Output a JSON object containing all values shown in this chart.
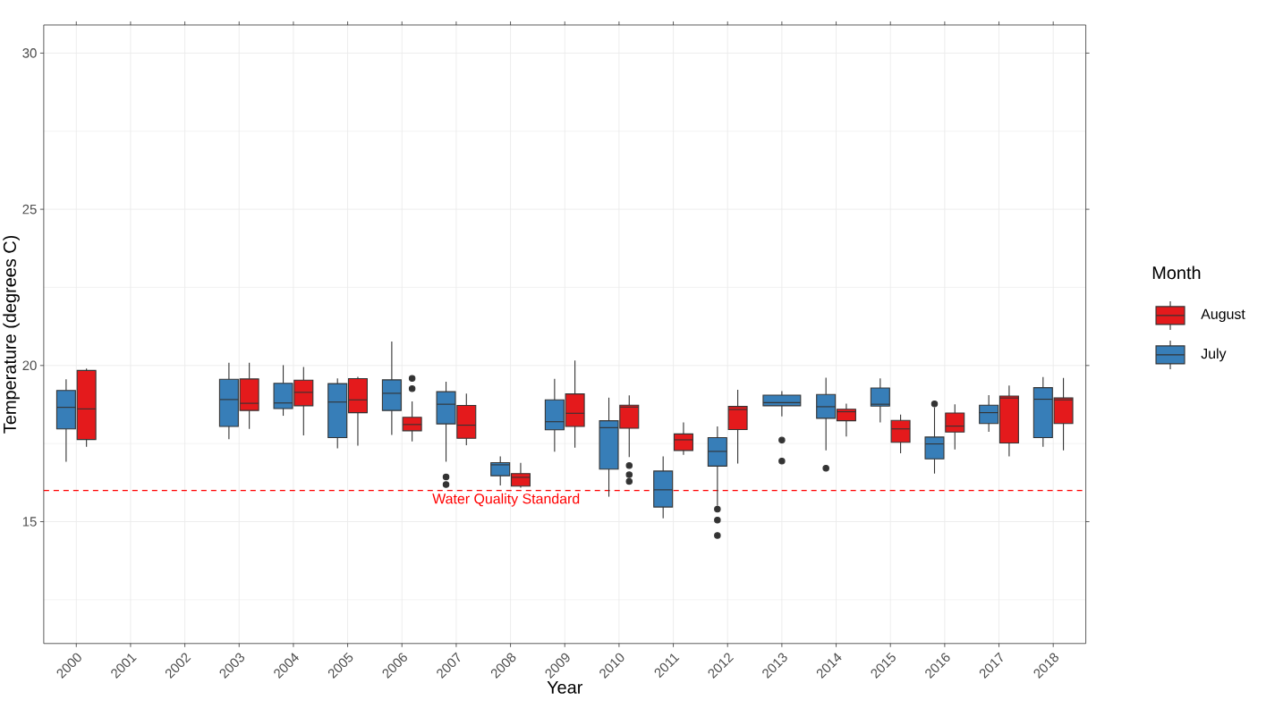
{
  "chart_data": {
    "type": "box",
    "xlabel": "Year",
    "ylabel": "Temperature (degrees C)",
    "legend_title": "Month",
    "legend": "right",
    "grid": true,
    "categories": [
      "2000",
      "2001",
      "2002",
      "2003",
      "2004",
      "2005",
      "2006",
      "2007",
      "2008",
      "2009",
      "2010",
      "2011",
      "2012",
      "2013",
      "2014",
      "2015",
      "2016",
      "2017",
      "2018"
    ],
    "ylim": [
      11.1,
      30.9
    ],
    "yticks": [
      15,
      20,
      25,
      30
    ],
    "ref_lines": [
      {
        "axis": "y",
        "value": 16,
        "label": "Water Quality Standard",
        "color": "#ff0000",
        "line_style": "dashed"
      }
    ],
    "series": [
      {
        "name": "August",
        "color": "#e41a1c",
        "boxes": [
          {
            "low": 17.4,
            "q1": 17.63,
            "median": 18.61,
            "q3": 19.84,
            "high": 19.9
          },
          null,
          null,
          {
            "low": 17.97,
            "q1": 18.56,
            "median": 18.79,
            "q3": 19.57,
            "high": 20.09
          },
          {
            "low": 17.76,
            "q1": 18.71,
            "median": 19.14,
            "q3": 19.53,
            "high": 19.95
          },
          {
            "low": 17.43,
            "q1": 18.49,
            "median": 18.9,
            "q3": 19.58,
            "high": 19.64
          },
          {
            "low": 17.57,
            "q1": 17.91,
            "median": 18.11,
            "q3": 18.34,
            "high": 18.85,
            "outliers": [
              19.26,
              19.59
            ]
          },
          {
            "low": 17.45,
            "q1": 17.67,
            "median": 18.09,
            "q3": 18.72,
            "high": 19.1
          },
          {
            "low": 16.09,
            "q1": 16.14,
            "median": 16.42,
            "q3": 16.54,
            "high": 16.88
          },
          {
            "low": 17.37,
            "q1": 18.05,
            "median": 18.47,
            "q3": 19.09,
            "high": 20.16
          },
          {
            "low": 17.07,
            "q1": 17.99,
            "median": 18.67,
            "q3": 18.73,
            "high": 19.04,
            "outliers": [
              16.8,
              16.5,
              16.29
            ]
          },
          {
            "low": 17.14,
            "q1": 17.28,
            "median": 17.62,
            "q3": 17.81,
            "high": 18.18
          },
          {
            "low": 16.86,
            "q1": 17.95,
            "median": 18.59,
            "q3": 18.69,
            "high": 19.22
          },
          null,
          {
            "low": 17.73,
            "q1": 18.23,
            "median": 18.52,
            "q3": 18.6,
            "high": 18.78
          },
          {
            "low": 17.19,
            "q1": 17.54,
            "median": 17.97,
            "q3": 18.24,
            "high": 18.43
          },
          {
            "low": 17.31,
            "q1": 17.87,
            "median": 18.06,
            "q3": 18.48,
            "high": 18.76
          },
          {
            "low": 17.09,
            "q1": 17.52,
            "median": 18.96,
            "q3": 19.02,
            "high": 19.36
          },
          {
            "low": 17.28,
            "q1": 18.14,
            "median": 18.9,
            "q3": 18.96,
            "high": 19.6
          }
        ]
      },
      {
        "name": "July",
        "color": "#377eb8",
        "boxes": [
          {
            "low": 16.92,
            "q1": 17.97,
            "median": 18.66,
            "q3": 19.2,
            "high": 19.56
          },
          null,
          null,
          {
            "low": 17.64,
            "q1": 18.05,
            "median": 18.91,
            "q3": 19.56,
            "high": 20.09
          },
          {
            "low": 18.39,
            "q1": 18.62,
            "median": 18.8,
            "q3": 19.43,
            "high": 20.01
          },
          {
            "low": 17.35,
            "q1": 17.69,
            "median": 18.83,
            "q3": 19.42,
            "high": 19.59
          },
          {
            "low": 17.78,
            "q1": 18.56,
            "median": 19.11,
            "q3": 19.54,
            "high": 20.77
          },
          {
            "low": 16.92,
            "q1": 18.13,
            "median": 18.76,
            "q3": 19.16,
            "high": 19.48,
            "outliers": [
              16.43,
              16.19
            ]
          },
          {
            "low": 16.16,
            "q1": 16.47,
            "median": 16.82,
            "q3": 16.89,
            "high": 17.09
          },
          {
            "low": 17.24,
            "q1": 17.94,
            "median": 18.2,
            "q3": 18.9,
            "high": 19.57
          },
          {
            "low": 15.8,
            "q1": 16.68,
            "median": 18.01,
            "q3": 18.23,
            "high": 18.97
          },
          {
            "low": 15.11,
            "q1": 15.47,
            "median": 16.02,
            "q3": 16.62,
            "high": 17.09
          },
          {
            "low": 15.51,
            "q1": 16.78,
            "median": 17.25,
            "q3": 17.69,
            "high": 18.05,
            "outliers": [
              15.4,
              15.05,
              14.56
            ]
          },
          {
            "low": 18.37,
            "q1": 18.71,
            "median": 18.81,
            "q3": 19.05,
            "high": 19.18,
            "outliers": [
              17.61,
              16.94
            ]
          },
          {
            "low": 17.28,
            "q1": 18.31,
            "median": 18.68,
            "q3": 19.07,
            "high": 19.61,
            "outliers": [
              16.71
            ]
          },
          {
            "low": 18.18,
            "q1": 18.7,
            "median": 18.76,
            "q3": 19.28,
            "high": 19.59
          },
          {
            "low": 16.54,
            "q1": 17.01,
            "median": 17.49,
            "q3": 17.71,
            "high": 18.66,
            "outliers": [
              18.77
            ]
          },
          {
            "low": 17.88,
            "q1": 18.14,
            "median": 18.49,
            "q3": 18.73,
            "high": 19.05
          },
          {
            "low": 17.4,
            "q1": 17.69,
            "median": 18.92,
            "q3": 19.29,
            "high": 19.63
          }
        ]
      }
    ]
  }
}
